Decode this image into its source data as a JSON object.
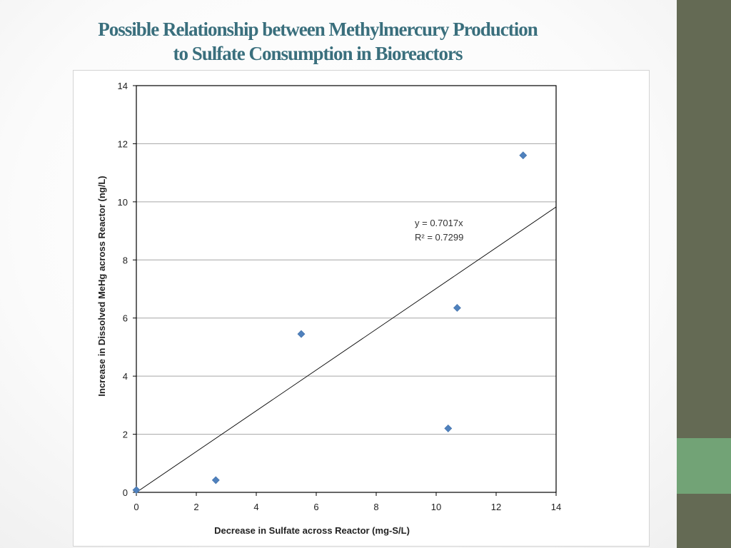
{
  "slide": {
    "title_line1": "Possible Relationship between Methylmercury Production",
    "title_line2": "to Sulfate Consumption in Bioreactors",
    "colors": {
      "title": "#3a6f7d",
      "sidebar": "#646a54",
      "sidebar_accent": "#72a376",
      "marker": "#4f81bd"
    }
  },
  "chart_data": {
    "type": "scatter",
    "title": "",
    "xlabel": "Decrease in Sulfate across Reactor (mg-S/L)",
    "ylabel": "Increase in Dissolved MeHg across Reactor (ng/L)",
    "xlim": [
      0,
      14
    ],
    "ylim": [
      0,
      14
    ],
    "x_ticks": [
      0,
      2,
      4,
      6,
      8,
      10,
      12,
      14
    ],
    "y_ticks": [
      0,
      2,
      4,
      6,
      8,
      10,
      12,
      14
    ],
    "grid": "horizontal",
    "legend": "none",
    "series": [
      {
        "marker": "diamond",
        "points": [
          {
            "x": 0.0,
            "y": 0.08
          },
          {
            "x": 2.65,
            "y": 0.42
          },
          {
            "x": 5.5,
            "y": 5.45
          },
          {
            "x": 10.4,
            "y": 2.2
          },
          {
            "x": 10.7,
            "y": 6.35
          },
          {
            "x": 12.9,
            "y": 11.6
          }
        ]
      }
    ],
    "trendline": {
      "slope": 0.7017,
      "intercept": 0,
      "equation_label": "y = 0.7017x",
      "r2_label": "R² = 0.7299"
    }
  }
}
